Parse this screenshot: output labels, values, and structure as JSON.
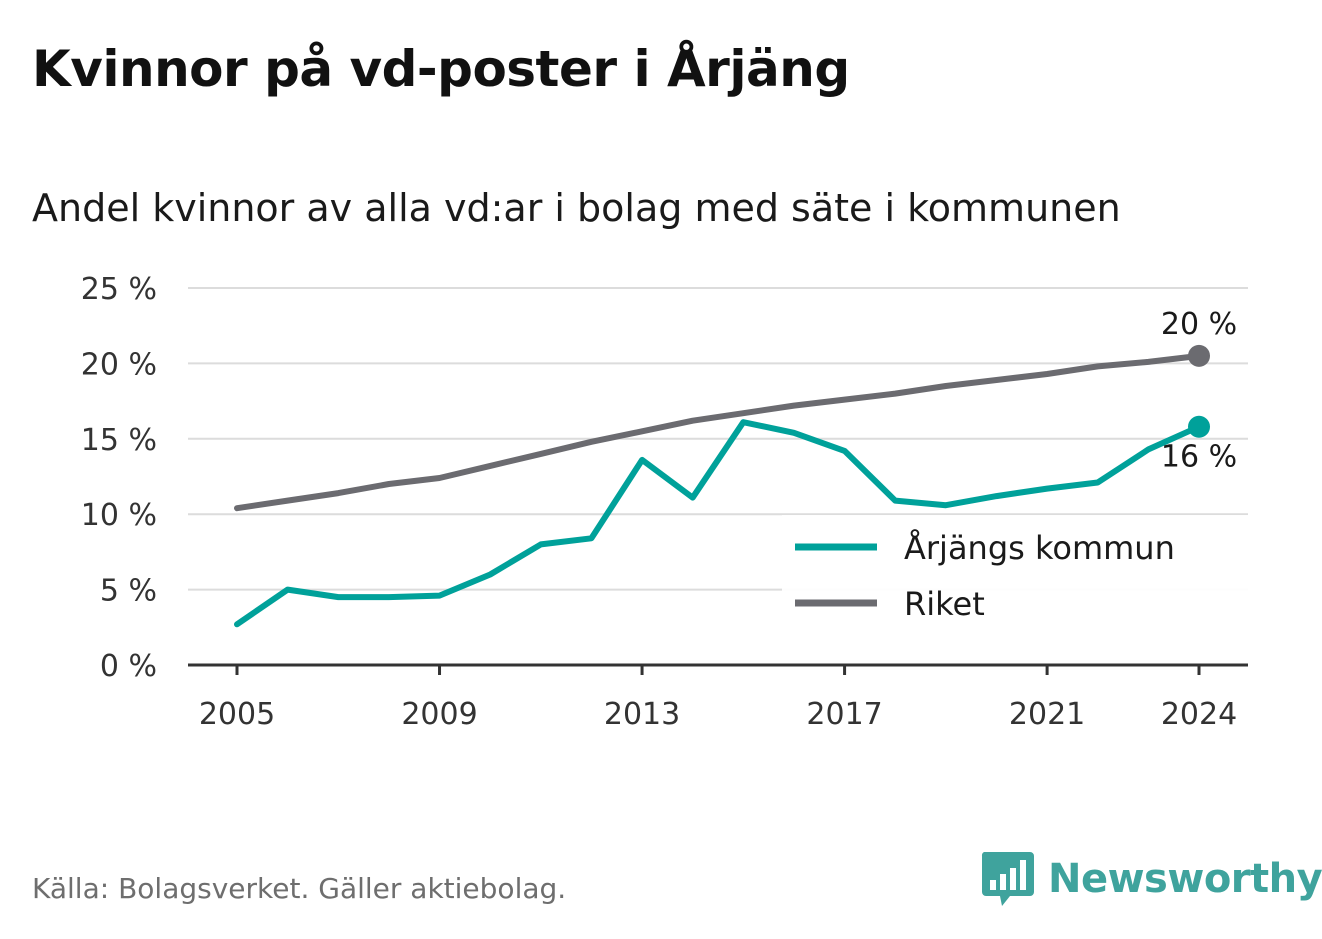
{
  "title": "Kvinnor på vd-poster i Årjäng",
  "subtitle": "Andel kvinnor av alla vd:ar i bolag med säte i kommunen",
  "source": "Källa: Bolagsverket. Gäller aktiebolag.",
  "brand": {
    "name": "Newsworthy",
    "icon": "newsworthy-logo-icon",
    "color": "#3fa39d"
  },
  "chart_data": {
    "type": "line",
    "x": [
      2005,
      2006,
      2007,
      2008,
      2009,
      2010,
      2011,
      2012,
      2013,
      2014,
      2015,
      2016,
      2017,
      2018,
      2019,
      2020,
      2021,
      2022,
      2023,
      2024
    ],
    "x_ticks": [
      "2005",
      "2009",
      "2013",
      "2017",
      "2021",
      "2024"
    ],
    "y_ticks": [
      "0 %",
      "5 %",
      "10 %",
      "15 %",
      "20 %",
      "25 %"
    ],
    "ylim": [
      0,
      25
    ],
    "grid": true,
    "legend_position": "lower-right",
    "series": [
      {
        "name": "Årjängs kommun",
        "color": "#00a19a",
        "values": [
          2.7,
          5.0,
          4.5,
          4.5,
          4.6,
          6.0,
          8.0,
          8.4,
          13.6,
          11.1,
          16.1,
          15.4,
          14.2,
          10.9,
          10.6,
          11.2,
          11.7,
          12.1,
          14.3,
          15.8
        ],
        "end_label": "16 %"
      },
      {
        "name": "Riket",
        "color": "#6b6b70",
        "values": [
          10.4,
          10.9,
          11.4,
          12.0,
          12.4,
          13.2,
          14.0,
          14.8,
          15.5,
          16.2,
          16.7,
          17.2,
          17.6,
          18.0,
          18.5,
          18.9,
          19.3,
          19.8,
          20.1,
          20.5
        ],
        "end_label": "20 %"
      }
    ]
  }
}
